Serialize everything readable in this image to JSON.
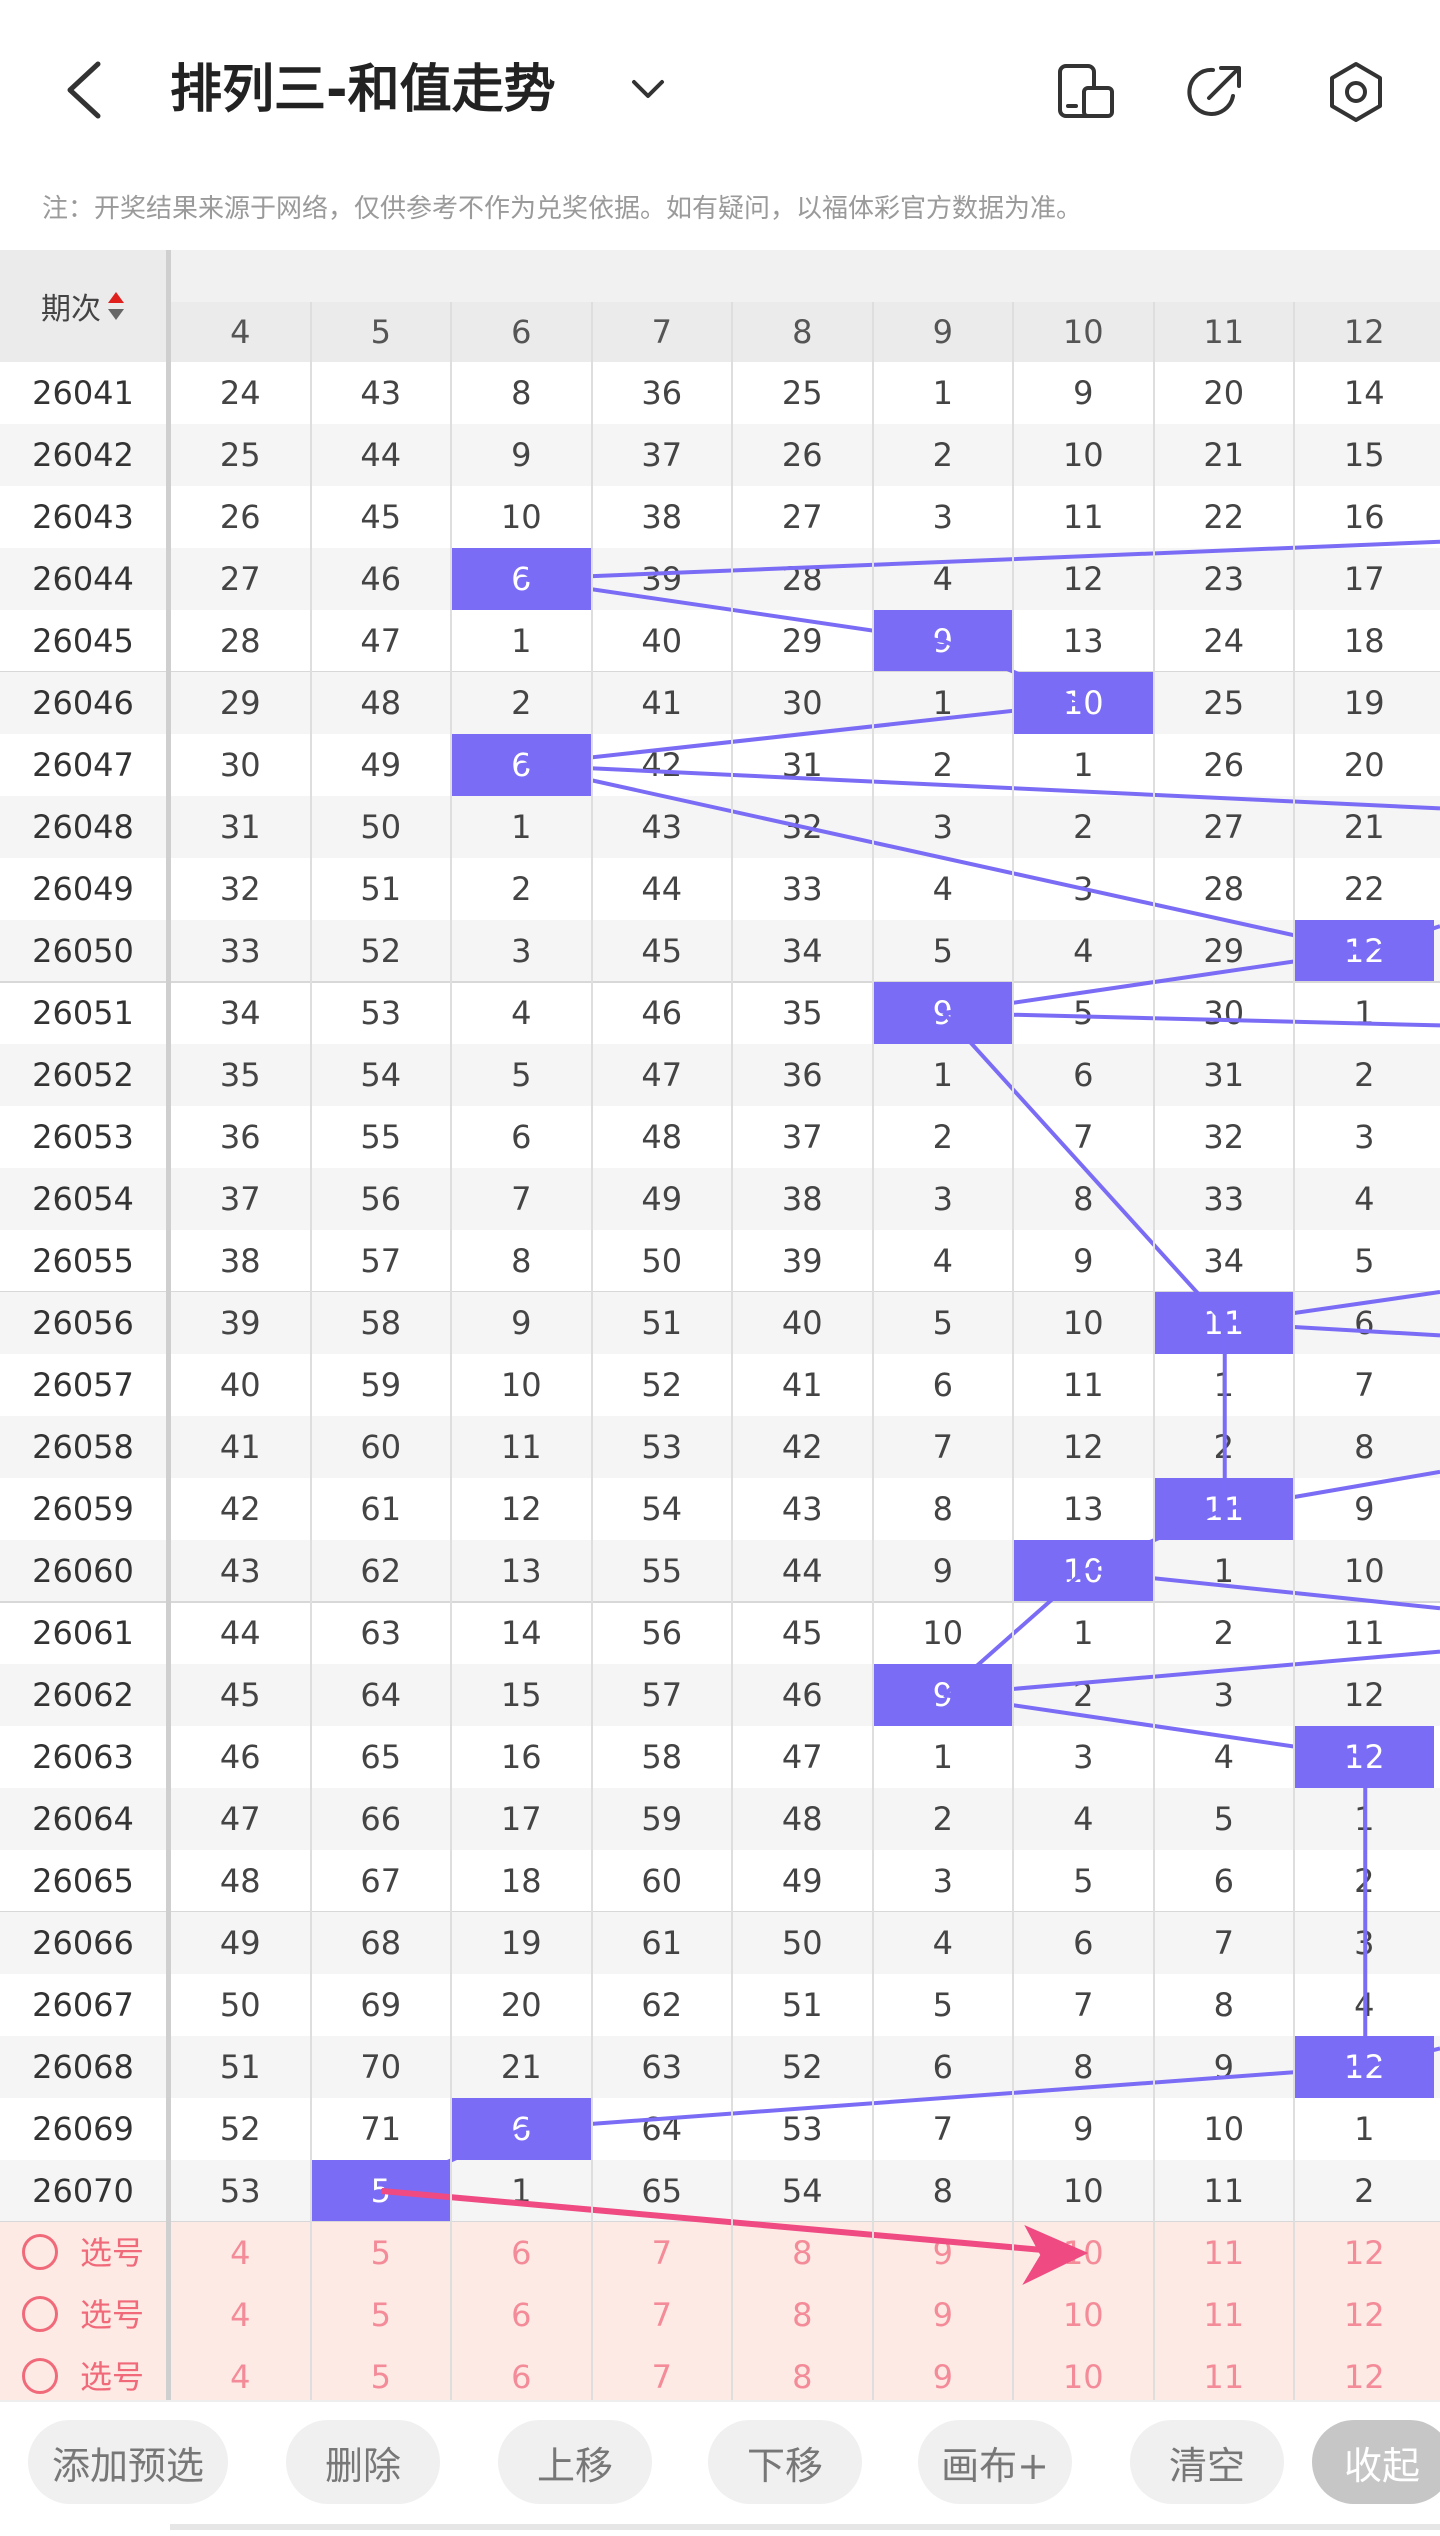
{
  "header": {
    "title": "排列三-和值走势",
    "notice": "注：开奖结果来源于网络，仅供参考不作为兑奖依据。如有疑问，以福体彩官方数据为准。"
  },
  "table": {
    "issue_header": "期次",
    "columns": [
      "4",
      "5",
      "6",
      "7",
      "8",
      "9",
      "10",
      "11",
      "12"
    ],
    "rows": [
      {
        "issue": "26041",
        "cells": [
          "24",
          "43",
          "8",
          "36",
          "25",
          "1",
          "9",
          "20",
          "14"
        ],
        "hit": -1
      },
      {
        "issue": "26042",
        "cells": [
          "25",
          "44",
          "9",
          "37",
          "26",
          "2",
          "10",
          "21",
          "15"
        ],
        "hit": -1
      },
      {
        "issue": "26043",
        "cells": [
          "26",
          "45",
          "10",
          "38",
          "27",
          "3",
          "11",
          "22",
          "16"
        ],
        "hit": -1
      },
      {
        "issue": "26044",
        "cells": [
          "27",
          "46",
          "6",
          "39",
          "28",
          "4",
          "12",
          "23",
          "17"
        ],
        "hit": 2
      },
      {
        "issue": "26045",
        "cells": [
          "28",
          "47",
          "1",
          "40",
          "29",
          "9",
          "13",
          "24",
          "18"
        ],
        "hit": 5
      },
      {
        "issue": "26046",
        "cells": [
          "29",
          "48",
          "2",
          "41",
          "30",
          "1",
          "10",
          "25",
          "19"
        ],
        "hit": 6
      },
      {
        "issue": "26047",
        "cells": [
          "30",
          "49",
          "6",
          "42",
          "31",
          "2",
          "1",
          "26",
          "20"
        ],
        "hit": 2
      },
      {
        "issue": "26048",
        "cells": [
          "31",
          "50",
          "1",
          "43",
          "32",
          "3",
          "2",
          "27",
          "21"
        ],
        "hit": -1
      },
      {
        "issue": "26049",
        "cells": [
          "32",
          "51",
          "2",
          "44",
          "33",
          "4",
          "3",
          "28",
          "22"
        ],
        "hit": -1
      },
      {
        "issue": "26050",
        "cells": [
          "33",
          "52",
          "3",
          "45",
          "34",
          "5",
          "4",
          "29",
          "12"
        ],
        "hit": 8
      },
      {
        "issue": "26051",
        "cells": [
          "34",
          "53",
          "4",
          "46",
          "35",
          "9",
          "5",
          "30",
          "1"
        ],
        "hit": 5
      },
      {
        "issue": "26052",
        "cells": [
          "35",
          "54",
          "5",
          "47",
          "36",
          "1",
          "6",
          "31",
          "2"
        ],
        "hit": -1
      },
      {
        "issue": "26053",
        "cells": [
          "36",
          "55",
          "6",
          "48",
          "37",
          "2",
          "7",
          "32",
          "3"
        ],
        "hit": -1
      },
      {
        "issue": "26054",
        "cells": [
          "37",
          "56",
          "7",
          "49",
          "38",
          "3",
          "8",
          "33",
          "4"
        ],
        "hit": -1
      },
      {
        "issue": "26055",
        "cells": [
          "38",
          "57",
          "8",
          "50",
          "39",
          "4",
          "9",
          "34",
          "5"
        ],
        "hit": -1
      },
      {
        "issue": "26056",
        "cells": [
          "39",
          "58",
          "9",
          "51",
          "40",
          "5",
          "10",
          "11",
          "6"
        ],
        "hit": 7
      },
      {
        "issue": "26057",
        "cells": [
          "40",
          "59",
          "10",
          "52",
          "41",
          "6",
          "11",
          "1",
          "7"
        ],
        "hit": -1
      },
      {
        "issue": "26058",
        "cells": [
          "41",
          "60",
          "11",
          "53",
          "42",
          "7",
          "12",
          "2",
          "8"
        ],
        "hit": -1
      },
      {
        "issue": "26059",
        "cells": [
          "42",
          "61",
          "12",
          "54",
          "43",
          "8",
          "13",
          "11",
          "9"
        ],
        "hit": 7
      },
      {
        "issue": "26060",
        "cells": [
          "43",
          "62",
          "13",
          "55",
          "44",
          "9",
          "10",
          "1",
          "10"
        ],
        "hit": 6
      },
      {
        "issue": "26061",
        "cells": [
          "44",
          "63",
          "14",
          "56",
          "45",
          "10",
          "1",
          "2",
          "11"
        ],
        "hit": -1
      },
      {
        "issue": "26062",
        "cells": [
          "45",
          "64",
          "15",
          "57",
          "46",
          "9",
          "2",
          "3",
          "12"
        ],
        "hit": 5
      },
      {
        "issue": "26063",
        "cells": [
          "46",
          "65",
          "16",
          "58",
          "47",
          "1",
          "3",
          "4",
          "12"
        ],
        "hit": 8
      },
      {
        "issue": "26064",
        "cells": [
          "47",
          "66",
          "17",
          "59",
          "48",
          "2",
          "4",
          "5",
          "1"
        ],
        "hit": -1
      },
      {
        "issue": "26065",
        "cells": [
          "48",
          "67",
          "18",
          "60",
          "49",
          "3",
          "5",
          "6",
          "2"
        ],
        "hit": -1
      },
      {
        "issue": "26066",
        "cells": [
          "49",
          "68",
          "19",
          "61",
          "50",
          "4",
          "6",
          "7",
          "3"
        ],
        "hit": -1
      },
      {
        "issue": "26067",
        "cells": [
          "50",
          "69",
          "20",
          "62",
          "51",
          "5",
          "7",
          "8",
          "4"
        ],
        "hit": -1
      },
      {
        "issue": "26068",
        "cells": [
          "51",
          "70",
          "21",
          "63",
          "52",
          "6",
          "8",
          "9",
          "12"
        ],
        "hit": 8
      },
      {
        "issue": "26069",
        "cells": [
          "52",
          "71",
          "6",
          "64",
          "53",
          "7",
          "9",
          "10",
          "1"
        ],
        "hit": 2
      },
      {
        "issue": "26070",
        "cells": [
          "53",
          "5",
          "1",
          "65",
          "54",
          "8",
          "10",
          "11",
          "2"
        ],
        "hit": 1
      }
    ],
    "pick_label": "选号",
    "pick_rows": [
      [
        "4",
        "5",
        "6",
        "7",
        "8",
        "9",
        "10",
        "11",
        "12"
      ],
      [
        "4",
        "5",
        "6",
        "7",
        "8",
        "9",
        "10",
        "11",
        "12"
      ],
      [
        "4",
        "5",
        "6",
        "7",
        "8",
        "9",
        "10",
        "11",
        "12"
      ]
    ]
  },
  "toolbar": {
    "buttons": [
      "添加预选",
      "删除",
      "上移",
      "下移",
      "画布+",
      "清空",
      "收起"
    ]
  },
  "colors": {
    "hit": "#7b6cf6",
    "trend_line": "#7b6cf6",
    "prediction_arrow": "#ef4a82",
    "pick_bg": "#fdeae5",
    "pick_text": "#f06a7a"
  },
  "icons": {
    "back": "back-arrow-icon",
    "dropdown": "chevron-down-icon",
    "device": "phone-device-icon",
    "share": "share-arrow-icon",
    "settings": "hexagon-settings-icon",
    "sort": "sort-updown-icon"
  }
}
